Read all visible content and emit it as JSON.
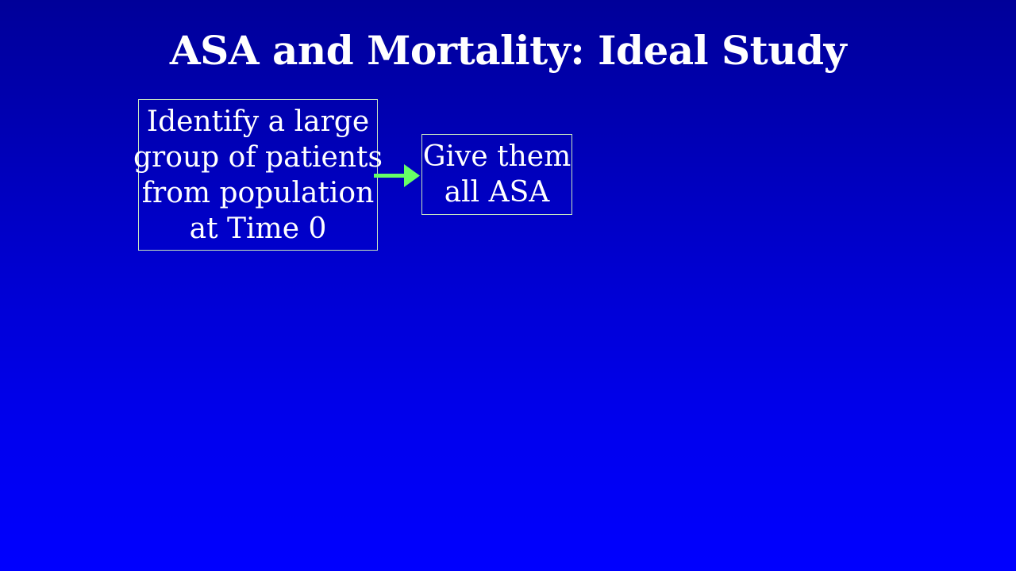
{
  "slide": {
    "title": "ASA and Mortality: Ideal Study",
    "background_top": "#000099",
    "background_bottom": "#0000ff"
  },
  "diagram": {
    "box1": {
      "lines": [
        "Identify a large",
        "group of patients",
        "from population",
        "at Time 0"
      ],
      "border_color": "#c8e6c0"
    },
    "arrow": {
      "color": "#66ff66",
      "icon": "right-arrow-icon"
    },
    "box2": {
      "lines": [
        "Give them",
        "all ASA"
      ],
      "border_color": "#c8e6c0"
    }
  }
}
